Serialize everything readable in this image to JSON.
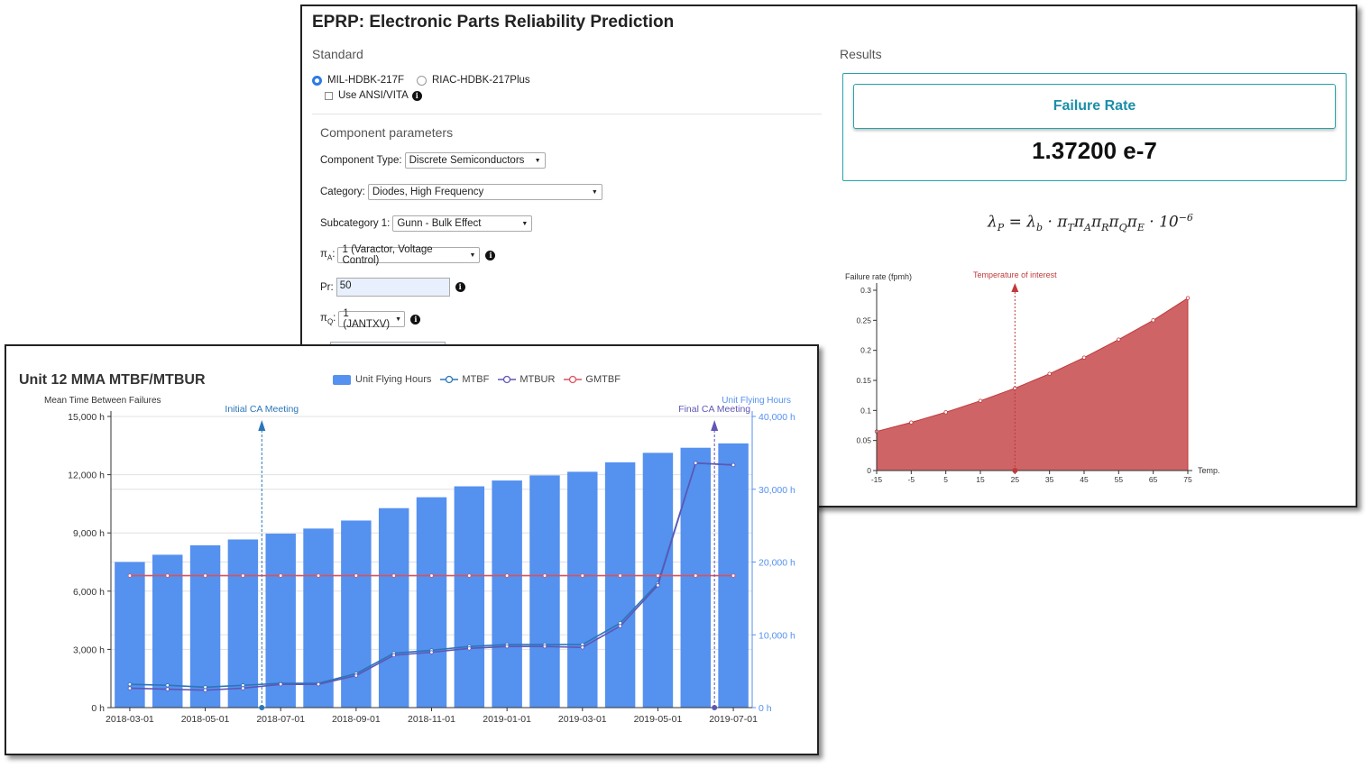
{
  "eprp": {
    "title": "EPRP: Electronic Parts Reliability Prediction",
    "standard_label": "Standard",
    "results_label": "Results",
    "standards": [
      "MIL-HDBK-217F",
      "RIAC-HDBK-217Plus"
    ],
    "selected_standard": "MIL-HDBK-217F",
    "ansi_label": "Use ANSI/VITA",
    "params_label": "Component parameters",
    "component_type_label": "Component Type:",
    "component_type_value": "Discrete Semiconductors",
    "category_label": "Category:",
    "category_value": "Diodes, High Frequency",
    "subcategory_label": "Subcategory 1:",
    "subcategory_value": "Gunn - Bulk Effect",
    "pi_a_label": "π",
    "pi_a_sub": "A",
    "pi_a_value": "1 (Varactor, Voltage Control)",
    "pr_label": "Pr:",
    "pr_value": "50",
    "pi_q_label": "π",
    "pi_q_sub": "Q",
    "pi_q_value": "1 (JANTXV)",
    "failure_rate_button": "Failure Rate",
    "failure_rate_value": "1.37200 e-7",
    "colors": {
      "accent": "#27a3a8",
      "radio": "#2c7be5"
    }
  },
  "fr_chart": {
    "chart_data": {
      "type": "area",
      "ylabel": "Failure rate (fpmh)",
      "xlabel": "Temp.",
      "annotation": "Temperature of interest",
      "annotation_x": 25,
      "x": [
        -15,
        -5,
        5,
        15,
        25,
        35,
        45,
        55,
        65,
        75
      ],
      "y": [
        0.065,
        0.08,
        0.097,
        0.116,
        0.137,
        0.161,
        0.188,
        0.218,
        0.25,
        0.287
      ],
      "xticks": [
        "-15",
        "-5",
        "5",
        "15",
        "25",
        "35",
        "45",
        "55",
        "65",
        "75"
      ],
      "yticks": [
        "0",
        "0.05",
        "0.1",
        "0.15",
        "0.2",
        "0.25",
        "0.3"
      ],
      "ylim": [
        0,
        0.3
      ],
      "color": "#c0393b"
    }
  },
  "mtbf": {
    "title": "Unit 12 MMA MTBF/MTBUR",
    "legend": [
      "Unit Flying Hours",
      "MTBF",
      "MTBUR",
      "GMTBF"
    ],
    "chart_data": {
      "type": "bar",
      "y_left_label": "Mean Time Between Failures",
      "y_right_label": "Unit Flying Hours",
      "y_left_ticks": [
        "0 h",
        "3,000 h",
        "6,000 h",
        "9,000 h",
        "12,000 h",
        "15,000 h"
      ],
      "y_right_ticks": [
        "0 h",
        "10,000 h",
        "20,000 h",
        "30,000 h",
        "40,000 h"
      ],
      "x_ticks": [
        "2018-03-01",
        "2018-05-01",
        "2018-07-01",
        "2018-09-01",
        "2018-11-01",
        "2019-01-01",
        "2019-03-01",
        "2019-05-01",
        "2019-07-01"
      ],
      "ylim_left": [
        0,
        15000
      ],
      "ylim_right": [
        0,
        40000
      ],
      "series": [
        {
          "name": "Unit Flying Hours",
          "axis": "right",
          "color": "#5591ef",
          "values": [
            20000,
            21000,
            22300,
            23100,
            23900,
            24600,
            25700,
            27400,
            28900,
            30400,
            31200,
            31900,
            32400,
            33700,
            35000,
            35700,
            36300
          ]
        },
        {
          "name": "MTBF",
          "axis": "left",
          "color": "#2b76b8",
          "values": [
            1200,
            1150,
            1050,
            1150,
            1250,
            1250,
            1750,
            2800,
            2950,
            3150,
            3250,
            3250,
            3250,
            4350,
            6400,
            12600,
            12500
          ]
        },
        {
          "name": "MTBUR",
          "axis": "left",
          "color": "#5f56b5",
          "values": [
            1000,
            950,
            900,
            1000,
            1200,
            1200,
            1650,
            2700,
            2850,
            3050,
            3150,
            3150,
            3100,
            4200,
            6300,
            12600,
            12500
          ]
        },
        {
          "name": "GMTBF",
          "axis": "left",
          "color": "#d9535f",
          "values": [
            6800,
            6800,
            6800,
            6800,
            6800,
            6800,
            6800,
            6800,
            6800,
            6800,
            6800,
            6800,
            6800,
            6800,
            6800,
            6800,
            6800
          ]
        }
      ],
      "annotations": [
        {
          "label": "Initial CA Meeting",
          "color": "#2b76b8",
          "at_index": 3.5
        },
        {
          "label": "Final CA Meeting",
          "color": "#5f56b5",
          "at_index": 15.5
        }
      ]
    }
  }
}
